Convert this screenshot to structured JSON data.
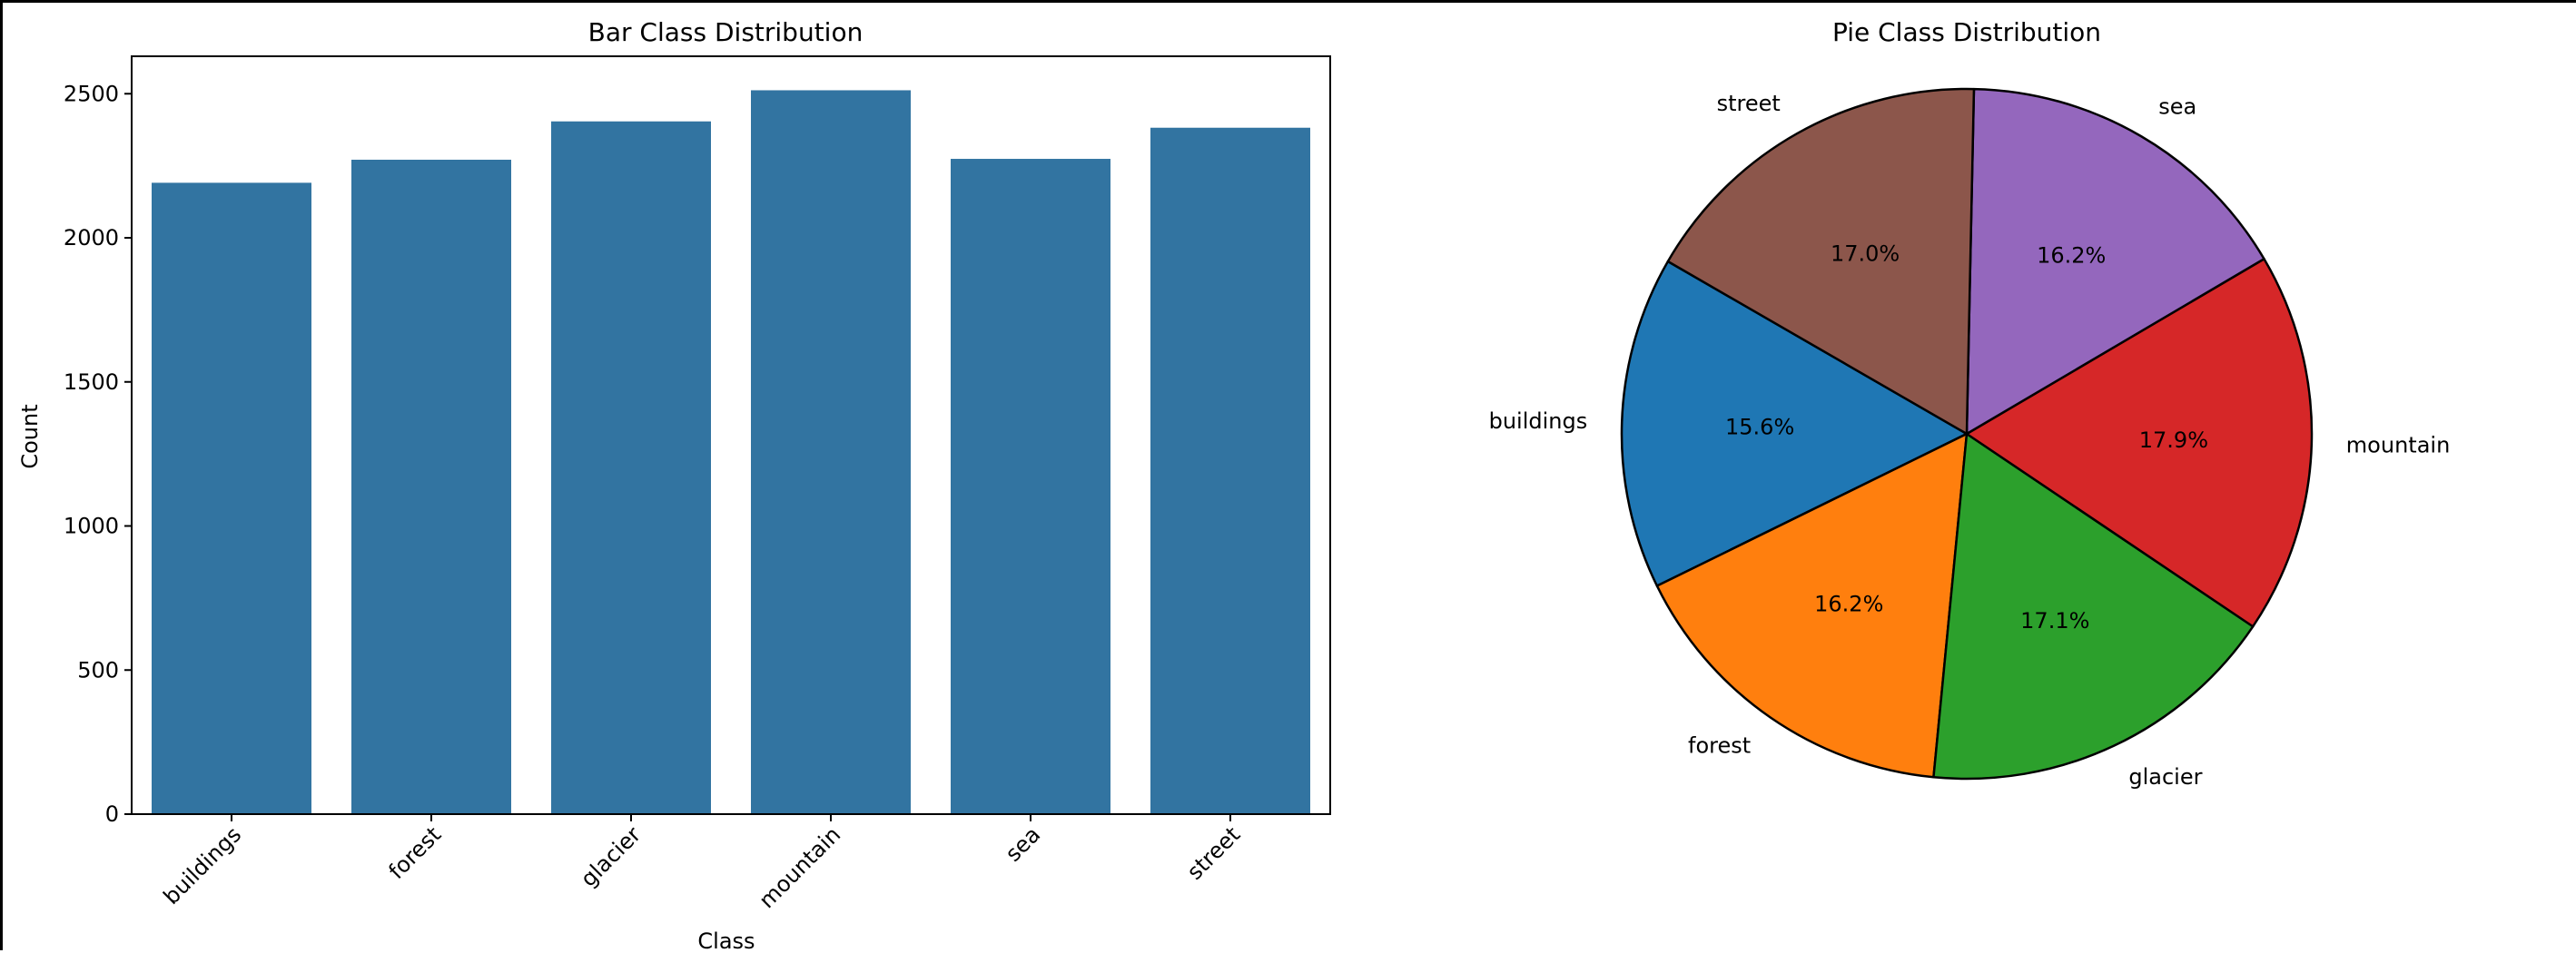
{
  "chart_data": [
    {
      "type": "bar",
      "title": "Bar Class Distribution",
      "xlabel": "Class",
      "ylabel": "Count",
      "categories": [
        "buildings",
        "forest",
        "glacier",
        "mountain",
        "sea",
        "street"
      ],
      "values": [
        2191,
        2271,
        2404,
        2512,
        2274,
        2382
      ],
      "ylim": [
        0,
        2630
      ],
      "yticks": [
        0,
        500,
        1000,
        1500,
        2000,
        2500
      ],
      "bar_color": "#3274a1",
      "grid": false
    },
    {
      "type": "pie",
      "title": "Pie Class Distribution",
      "categories": [
        "buildings",
        "forest",
        "glacier",
        "mountain",
        "sea",
        "street"
      ],
      "values": [
        15.6,
        16.2,
        17.1,
        17.9,
        16.2,
        17.0
      ],
      "labels": [
        "15.6%",
        "16.2%",
        "17.1%",
        "17.9%",
        "16.2%",
        "17.0%"
      ],
      "colors": [
        "#1f77b4",
        "#ff7f0e",
        "#2ca02c",
        "#d62728",
        "#9467bd",
        "#8c564b"
      ],
      "start_angle_deg": 150,
      "direction": "counterclockwise",
      "edge_color": "#000000"
    }
  ]
}
